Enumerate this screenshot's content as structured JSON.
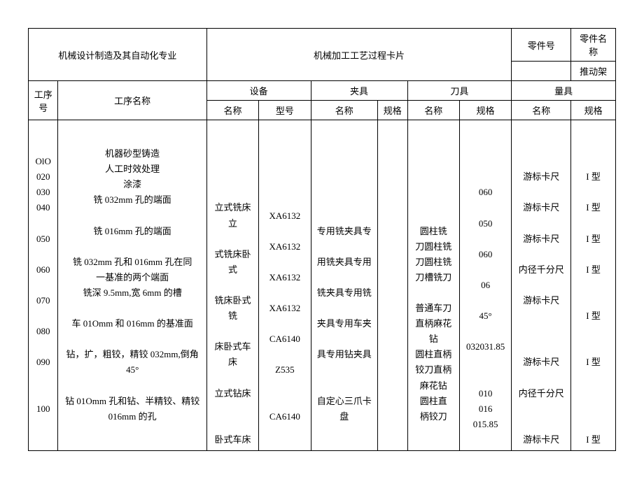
{
  "header": {
    "dept": "机械设计制造及其自动化专业",
    "title": "机械加工工艺过程卡片",
    "part_no_label": "零件号",
    "part_name_label": "零件名称",
    "part_name": "推动架"
  },
  "group_headers": {
    "seq": "工序号",
    "op": "工序名称",
    "equipment": "设备",
    "fixture": "夹具",
    "cutter": "刀具",
    "measure": "量具"
  },
  "sub_headers": {
    "name": "名称",
    "model": "型号",
    "spec": "规格"
  },
  "columns": {
    "seq": "OlO\n020\n030\n040\n\n050\n\n060\n\n070\n\n080\n\n090\n\n\n100",
    "op_name": "机器砂型铸造\n人工时效处理\n涂漆\n铣 032mm 孔的端面\n\n铣 016mm 孔的端面\n\n铣 032mm 孔和 016mm 孔在同\n一基准的两个端面\n铣深 9.5mm,宽 6mm 的槽\n\n车 01Omm 和 016mm 的基准面\n\n钻，扩，粗铰，精铰 032mm,倒角\n45°\n\n钻 01Omm 孔和钻、半精铰、精铰\n016mm 的孔",
    "equip_name": "\n\n\n\n\n立式铣床立\n\n式铣床卧式\n\n铣床卧式铣\n\n床卧式车床\n\n立式钻床\n\n\n卧式车床",
    "equip_model": "\n\n\n\nXA6132\n\nXA6132\n\nXA6132\n\nXA6132\n\nCA6140\n\nZ535\n\n\nCA6140",
    "fixture_name": "\n\n\n\n\n专用铣夹具专\n\n用铣夹具专用\n\n铣夹具专用铣\n\n夹具专用车夹\n\n具专用钻夹具\n\n\n自定心三爪卡\n盘",
    "fixture_spec": "",
    "cutter_name": "\n\n\n\n\n圆柱铣\n刀圆柱铣\n刀圆柱铣\n刀槽铣刀\n\n普通车刀\n直柄麻花\n钻\n圆柱直柄\n铰刀直柄\n麻花钻\n圆柱直\n柄铰刀",
    "cutter_spec": "\n\n\n060\n\n050\n\n060\n\n06\n\n45°\n\n032031.85\n\n\n010\n016\n015.85",
    "measure_name": "\n\n\n游标卡尺\n\n游标卡尺\n\n游标卡尺\n\n内径千分尺\n\n游标卡尺\n\n\n\n游标卡尺\n\n内径千分尺\n\n\n游标卡尺",
    "measure_spec": "\n\n\nI 型\n\nI 型\n\nI 型\n\nI 型\n\n\nI 型\n\n\nI 型\n\n\n\n\nI 型"
  }
}
